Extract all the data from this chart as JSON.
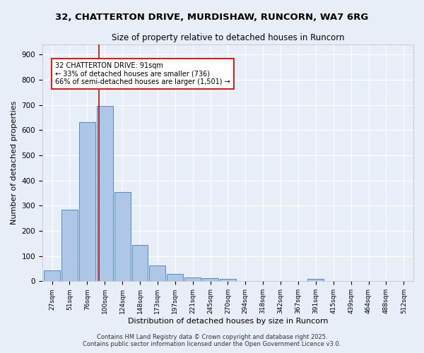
{
  "title_line1": "32, CHATTERTON DRIVE, MURDISHAW, RUNCORN, WA7 6RG",
  "title_line2": "Size of property relative to detached houses in Runcorn",
  "xlabel": "Distribution of detached houses by size in Runcorn",
  "ylabel": "Number of detached properties",
  "bar_labels": [
    "27sqm",
    "51sqm",
    "76sqm",
    "100sqm",
    "124sqm",
    "148sqm",
    "173sqm",
    "197sqm",
    "221sqm",
    "245sqm",
    "270sqm",
    "294sqm",
    "318sqm",
    "342sqm",
    "367sqm",
    "391sqm",
    "415sqm",
    "439sqm",
    "464sqm",
    "488sqm",
    "512sqm"
  ],
  "bar_values": [
    43,
    283,
    632,
    697,
    353,
    143,
    63,
    30,
    16,
    12,
    8,
    0,
    0,
    0,
    0,
    8,
    0,
    0,
    0,
    0,
    0
  ],
  "bar_color": "#aec6e8",
  "bar_edgecolor": "#5588bb",
  "bg_color": "#e8eef8",
  "grid_color": "#ffffff",
  "vline_x": 2.67,
  "vline_color": "#aa1111",
  "annotation_text": "32 CHATTERTON DRIVE: 91sqm\n← 33% of detached houses are smaller (736)\n66% of semi-detached houses are larger (1,501) →",
  "annotation_box_facecolor": "#ffffff",
  "annotation_box_edgecolor": "#cc2222",
  "ylim": [
    0,
    940
  ],
  "yticks": [
    0,
    100,
    200,
    300,
    400,
    500,
    600,
    700,
    800,
    900
  ],
  "footer_line1": "Contains HM Land Registry data © Crown copyright and database right 2025.",
  "footer_line2": "Contains public sector information licensed under the Open Government Licence v3.0."
}
